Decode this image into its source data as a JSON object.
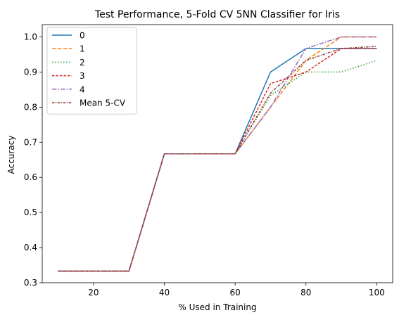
{
  "chart_data": {
    "type": "line",
    "title": "Test Performance, 5-Fold CV 5NN Classifier for Iris",
    "xlabel": "% Used in Training",
    "ylabel": "Accuracy",
    "xlim": [
      5.5,
      104.5
    ],
    "ylim": [
      0.3,
      1.035
    ],
    "xticks": [
      20,
      40,
      60,
      80,
      100
    ],
    "xtick_labels": [
      "20",
      "40",
      "60",
      "80",
      "100"
    ],
    "yticks": [
      0.3,
      0.4,
      0.5,
      0.6,
      0.7,
      0.8,
      0.9,
      1.0
    ],
    "ytick_labels": [
      "0.3",
      "0.4",
      "0.5",
      "0.6",
      "0.7",
      "0.8",
      "0.9",
      "1.0"
    ],
    "grid": false,
    "legend_position": "top-left",
    "x": [
      10,
      20,
      30,
      40,
      50,
      60,
      70,
      80,
      90,
      100
    ],
    "series": [
      {
        "name": "0",
        "color": "#1f77b4",
        "dash": "solid",
        "values": [
          0.333,
          0.333,
          0.333,
          0.667,
          0.667,
          0.667,
          0.9,
          0.967,
          0.967,
          0.967
        ]
      },
      {
        "name": "1",
        "color": "#ff7f0e",
        "dash": "dashed",
        "values": [
          0.333,
          0.333,
          0.333,
          0.667,
          0.667,
          0.667,
          0.8,
          0.933,
          1.0,
          1.0
        ]
      },
      {
        "name": "2",
        "color": "#2ca02c",
        "dash": "dotted",
        "values": [
          0.333,
          0.333,
          0.333,
          0.667,
          0.667,
          0.667,
          0.833,
          0.9,
          0.9,
          0.933
        ]
      },
      {
        "name": "3",
        "color": "#d62728",
        "dash": "densedash",
        "values": [
          0.333,
          0.333,
          0.333,
          0.667,
          0.667,
          0.667,
          0.867,
          0.9,
          0.967,
          0.967
        ]
      },
      {
        "name": "4",
        "color": "#9467bd",
        "dash": "dashdot",
        "values": [
          0.333,
          0.333,
          0.333,
          0.667,
          0.667,
          0.667,
          0.8,
          0.967,
          1.0,
          1.0
        ]
      },
      {
        "name": "Mean 5-CV",
        "color": "#8c3b2e",
        "dash": "densedashdot",
        "values": [
          0.333,
          0.333,
          0.333,
          0.667,
          0.667,
          0.667,
          0.84,
          0.933,
          0.967,
          0.973
        ]
      }
    ]
  }
}
